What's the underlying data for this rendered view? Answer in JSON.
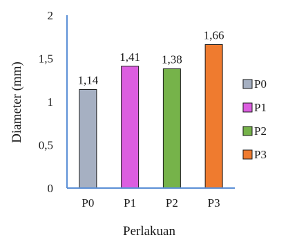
{
  "chart_data": {
    "type": "bar",
    "categories": [
      "P0",
      "P1",
      "P2",
      "P3"
    ],
    "values": [
      1.14,
      1.41,
      1.38,
      1.66
    ],
    "data_labels": [
      "1,14",
      "1,41",
      "1,38",
      "1,66"
    ],
    "colors": [
      "#a6b0c2",
      "#dc5ee0",
      "#76b34a",
      "#ef7b2f"
    ],
    "title": "",
    "xlabel": "Perlakuan",
    "ylabel": "Diameter (mm)",
    "ylim": [
      0,
      2
    ],
    "yticks": [
      0,
      0.5,
      1,
      1.5,
      2
    ],
    "ytick_labels": [
      "0",
      "0,5",
      "1",
      "1,5",
      "2"
    ],
    "grid": false,
    "legend": {
      "position": "right",
      "entries": [
        "P0",
        "P1",
        "P2",
        "P3"
      ]
    }
  }
}
